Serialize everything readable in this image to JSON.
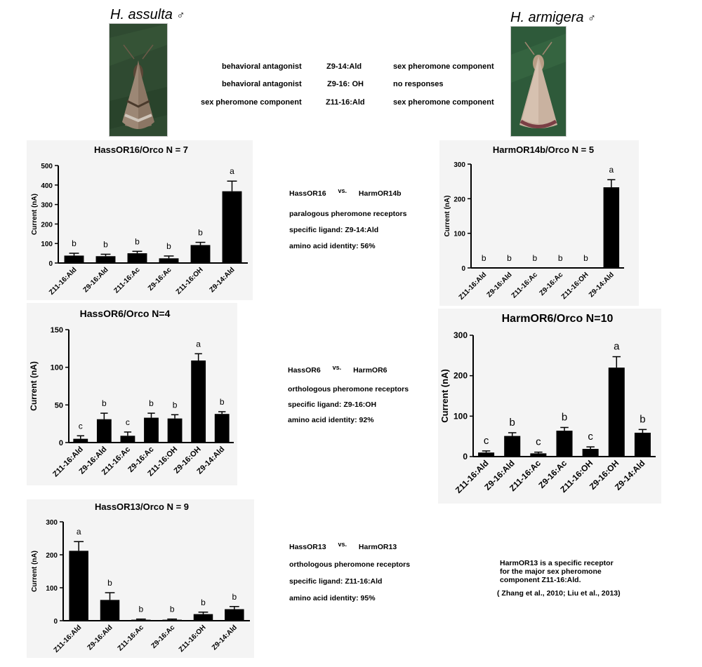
{
  "header": {
    "left_species": "H. assulta",
    "right_species": "H. armigera",
    "male_symbol": "♂"
  },
  "comparison_table": {
    "rows": [
      {
        "left": "behavioral antagonist",
        "compound": "Z9-14:Ald",
        "right": "sex pheromone component"
      },
      {
        "left": "behavioral antagonist",
        "compound": "Z9-16: OH",
        "right": "no responses"
      },
      {
        "left": "sex pheromone component",
        "compound": "Z11-16:Ald",
        "right": "sex pheromone component"
      }
    ]
  },
  "comparisons": [
    {
      "a": "HassOR16",
      "vs": "vs.",
      "b": "HarmOR14b",
      "lines": [
        "paralogous pheromone receptors",
        "specific ligand:  Z9-14:Ald",
        "amino acid identity: 56%"
      ]
    },
    {
      "a": "HassOR6",
      "vs": "vs.",
      "b": "HarmOR6",
      "lines": [
        "orthologous pheromone receptors",
        "specific ligand: Z9-16:OH",
        "amino acid identity: 92%"
      ]
    },
    {
      "a": "HassOR13",
      "vs": "vs.",
      "b": "HarmOR13",
      "lines": [
        "orthologous pheromone receptors",
        "specific ligand: Z11-16:Ald",
        "amino acid identity: 95%"
      ]
    }
  ],
  "note": {
    "lines": [
      "HarmOR13 is a specific receptor",
      "for the major sex pheromone",
      "component Z11-16:Ald."
    ],
    "citation": "( Zhang et al., 2010; Liu et al., 2013)"
  },
  "chart_data": [
    {
      "type": "bar",
      "title": "HassOR16/Orco N = 7",
      "ylabel": "Current (nA)",
      "ylim": [
        0,
        500
      ],
      "yticks": [
        0,
        100,
        200,
        300,
        400,
        500
      ],
      "categories": [
        "Z11-16:Ald",
        "Z9-16:Ald",
        "Z11-16:Ac",
        "Z9-16:Ac",
        "Z11-16:OH",
        "Z9-14:Ald"
      ],
      "values": [
        38,
        35,
        50,
        24,
        92,
        368
      ],
      "errors": [
        12,
        10,
        10,
        12,
        14,
        52
      ],
      "letters": [
        "b",
        "b",
        "b",
        "b",
        "b",
        "a"
      ]
    },
    {
      "type": "bar",
      "title": "HarmOR14b/Orco N = 5",
      "ylabel": "Current (nA)",
      "ylim": [
        0,
        300
      ],
      "yticks": [
        0,
        100,
        200,
        300
      ],
      "categories": [
        "Z11-16:Ald",
        "Z9-16:Ald",
        "Z11-16:Ac",
        "Z9-16:Ac",
        "Z11-16:OH",
        "Z9-14:Ald"
      ],
      "values": [
        0,
        0,
        0,
        0,
        0,
        233
      ],
      "errors": [
        0,
        0,
        0,
        0,
        0,
        22
      ],
      "letters": [
        "b",
        "b",
        "b",
        "b",
        "b",
        "a"
      ]
    },
    {
      "type": "bar",
      "title": "HassOR6/Orco N=4",
      "ylabel": "Current (nA)",
      "ylim": [
        0,
        150
      ],
      "yticks": [
        0,
        50,
        100,
        150
      ],
      "categories": [
        "Z11-16:Ald",
        "Z9-16:Ald",
        "Z11-16:Ac",
        "Z9-16:Ac",
        "Z11-16:OH",
        "Z9-16:OH",
        "Z9-14:Ald"
      ],
      "values": [
        5,
        31,
        9,
        33,
        32,
        109,
        38
      ],
      "errors": [
        4,
        8,
        5,
        6,
        5,
        9,
        3
      ],
      "letters": [
        "c",
        "b",
        "c",
        "b",
        "b",
        "a",
        "b"
      ]
    },
    {
      "type": "bar",
      "title": "HarmOR6/Orco N=10",
      "ylabel": "Current (nA)",
      "ylim": [
        0,
        300
      ],
      "yticks": [
        0,
        100,
        200,
        300
      ],
      "categories": [
        "Z11-16:Ald",
        "Z9-16:Ald",
        "Z11-16:Ac",
        "Z9-16:Ac",
        "Z11-16:OH",
        "Z9-16:OH",
        "Z9-14:Ald"
      ],
      "values": [
        10,
        51,
        8,
        64,
        19,
        220,
        59
      ],
      "errors": [
        4,
        8,
        3,
        8,
        5,
        27,
        8
      ],
      "letters": [
        "c",
        "b",
        "c",
        "b",
        "c",
        "a",
        "b"
      ]
    },
    {
      "type": "bar",
      "title": "HassOR13/Orco N = 9",
      "ylabel": "Current (nA)",
      "ylim": [
        0,
        300
      ],
      "yticks": [
        0,
        100,
        200,
        300
      ],
      "categories": [
        "Z11-16:Ald",
        "Z9-16:Ald",
        "Z11-16:Ac",
        "Z9-16:Ac",
        "Z11-16:OH",
        "Z9-14:Ald"
      ],
      "values": [
        212,
        63,
        3,
        3,
        20,
        35
      ],
      "errors": [
        28,
        22,
        2,
        2,
        6,
        8
      ],
      "letters": [
        "a",
        "b",
        "b",
        "b",
        "b",
        "b"
      ]
    }
  ]
}
